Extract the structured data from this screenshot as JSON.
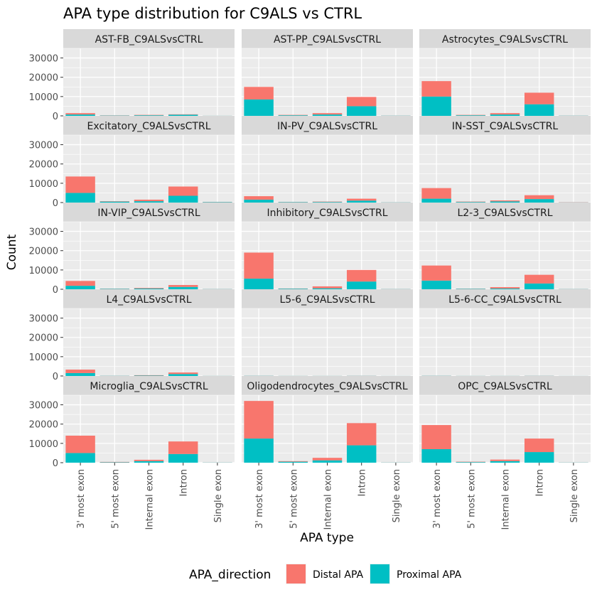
{
  "chart_data": {
    "type": "bar",
    "stacked": true,
    "title": "APA type distribution for C9ALS vs CTRL",
    "xlabel": "APA type",
    "ylabel": "Count",
    "ylim": [
      0,
      35000
    ],
    "yticks": [
      0,
      10000,
      20000,
      30000
    ],
    "categories": [
      "3' most exon",
      "5' most exon",
      "Internal exon",
      "Intron",
      "Single exon"
    ],
    "facet_columns": 3,
    "legend": {
      "title": "APA_direction",
      "position": "bottom",
      "items": [
        {
          "label": "Distal APA",
          "color": "#F8766D"
        },
        {
          "label": "Proximal APA",
          "color": "#00BFC4"
        }
      ]
    },
    "colors": {
      "distal": "#F8766D",
      "proximal": "#00BFC4",
      "panel_bg": "#EBEBEB",
      "strip_bg": "#D9D9D9",
      "grid": "#FFFFFF"
    },
    "panels": [
      {
        "title": "AST-FB_C9ALSvsCTRL",
        "proximal": [
          700,
          150,
          300,
          600,
          50
        ],
        "distal": [
          700,
          100,
          200,
          200,
          30
        ]
      },
      {
        "title": "AST-PP_C9ALSvsCTRL",
        "proximal": [
          8500,
          300,
          700,
          5000,
          100
        ],
        "distal": [
          6500,
          200,
          700,
          4800,
          50
        ]
      },
      {
        "title": "Astrocytes_C9ALSvsCTRL",
        "proximal": [
          10000,
          300,
          700,
          6000,
          100
        ],
        "distal": [
          8000,
          200,
          700,
          6000,
          50
        ]
      },
      {
        "title": "Excitatory_C9ALSvsCTRL",
        "proximal": [
          5000,
          500,
          700,
          3500,
          200
        ],
        "distal": [
          8500,
          200,
          800,
          4800,
          100
        ]
      },
      {
        "title": "IN-PV_C9ALSvsCTRL",
        "proximal": [
          1500,
          200,
          300,
          1000,
          100
        ],
        "distal": [
          1800,
          100,
          200,
          1000,
          50
        ]
      },
      {
        "title": "IN-SST_C9ALSvsCTRL",
        "proximal": [
          2000,
          300,
          600,
          1800,
          100
        ],
        "distal": [
          5500,
          200,
          500,
          2000,
          100
        ]
      },
      {
        "title": "IN-VIP_C9ALSvsCTRL",
        "proximal": [
          1800,
          200,
          400,
          1200,
          100
        ],
        "distal": [
          2500,
          100,
          300,
          1000,
          50
        ]
      },
      {
        "title": "Inhibitory_C9ALSvsCTRL",
        "proximal": [
          5500,
          300,
          500,
          4000,
          100
        ],
        "distal": [
          13500,
          100,
          1000,
          6000,
          50
        ]
      },
      {
        "title": "L2-3_C9ALSvsCTRL",
        "proximal": [
          4500,
          200,
          400,
          3000,
          100
        ],
        "distal": [
          7800,
          100,
          700,
          4500,
          50
        ]
      },
      {
        "title": "L4_C9ALSvsCTRL",
        "proximal": [
          1500,
          100,
          200,
          1000,
          50
        ],
        "distal": [
          1800,
          50,
          200,
          800,
          30
        ]
      },
      {
        "title": "L5-6_C9ALSvsCTRL",
        "proximal": [
          100,
          50,
          50,
          80,
          30
        ],
        "distal": [
          50,
          30,
          30,
          50,
          20
        ]
      },
      {
        "title": "L5-6-CC_C9ALSvsCTRL",
        "proximal": [
          100,
          50,
          50,
          80,
          30
        ],
        "distal": [
          50,
          30,
          30,
          50,
          20
        ]
      },
      {
        "title": "Microglia_C9ALSvsCTRL",
        "proximal": [
          5000,
          200,
          800,
          4500,
          100
        ],
        "distal": [
          9000,
          200,
          700,
          6500,
          50
        ]
      },
      {
        "title": "Oligodendrocytes_C9ALSvsCTRL",
        "proximal": [
          12500,
          500,
          1200,
          9000,
          100
        ],
        "distal": [
          19500,
          300,
          1300,
          11500,
          50
        ]
      },
      {
        "title": "OPC_C9ALSvsCTRL",
        "proximal": [
          7000,
          300,
          800,
          5500,
          100
        ],
        "distal": [
          12500,
          200,
          800,
          7000,
          50
        ]
      }
    ]
  }
}
